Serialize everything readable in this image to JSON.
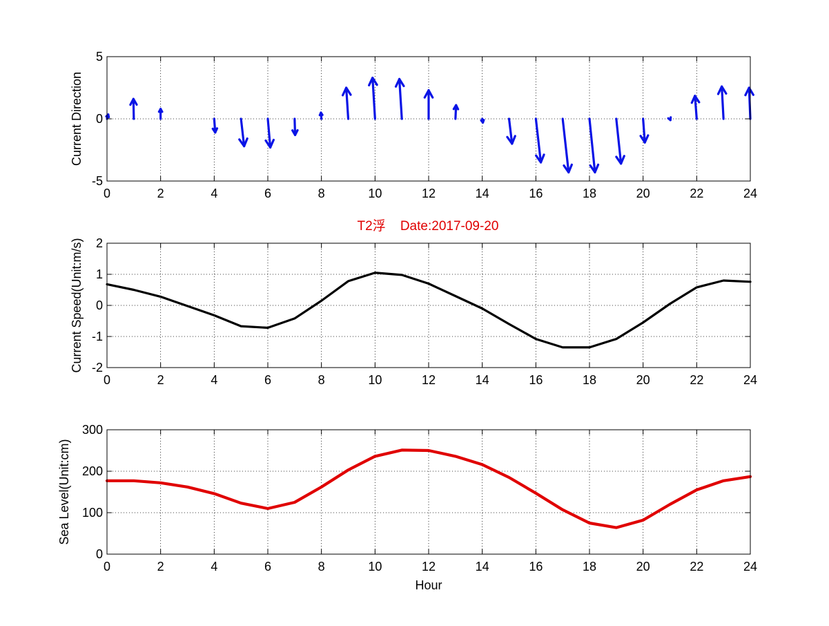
{
  "title": "T2浮    Date:2017-09-20",
  "colors": {
    "title": "#e00000",
    "quiver": "#0a14e6",
    "speed": "#000000",
    "level": "#e00000",
    "axis": "#000000"
  },
  "chart_data": [
    {
      "type": "quiver",
      "ylabel": "Current Direction",
      "xlabel": "",
      "xlim": [
        0,
        24
      ],
      "ylim": [
        -5,
        5
      ],
      "xticks": [
        0,
        2,
        4,
        6,
        8,
        10,
        12,
        14,
        16,
        18,
        20,
        22,
        24
      ],
      "yticks": [
        -5,
        0,
        5
      ],
      "grid": true,
      "x": [
        0,
        1,
        2,
        3,
        4,
        5,
        6,
        7,
        8,
        9,
        10,
        11,
        12,
        13,
        14,
        15,
        16,
        17,
        18,
        19,
        20,
        21,
        22,
        23,
        24
      ],
      "u": [
        0.1,
        -0.03,
        0.0,
        0.0,
        0.08,
        0.25,
        0.2,
        0.04,
        -0.04,
        -0.16,
        -0.2,
        -0.2,
        0.0,
        0.05,
        0.05,
        0.24,
        0.4,
        0.48,
        0.44,
        0.38,
        0.14,
        0.04,
        -0.14,
        -0.14,
        -0.1
      ],
      "v": [
        0.35,
        1.6,
        0.8,
        0.0,
        -1.1,
        -2.2,
        -2.3,
        -1.3,
        0.5,
        2.5,
        3.3,
        3.2,
        2.3,
        1.1,
        -0.3,
        -2.0,
        -3.5,
        -4.3,
        -4.3,
        -3.6,
        -1.9,
        -0.1,
        1.85,
        2.6,
        2.5
      ]
    },
    {
      "type": "line",
      "ylabel": "Current Speed(Unit:m/s)",
      "xlabel": "",
      "xlim": [
        0,
        24
      ],
      "ylim": [
        -2,
        2
      ],
      "xticks": [
        0,
        2,
        4,
        6,
        8,
        10,
        12,
        14,
        16,
        18,
        20,
        22,
        24
      ],
      "yticks": [
        -2,
        -1,
        0,
        1,
        2
      ],
      "grid": true,
      "x": [
        0,
        1,
        2,
        3,
        4,
        5,
        6,
        7,
        8,
        9,
        10,
        11,
        12,
        13,
        14,
        15,
        16,
        17,
        18,
        19,
        20,
        21,
        22,
        23,
        24
      ],
      "series": [
        {
          "values": [
            0.68,
            0.5,
            0.28,
            -0.02,
            -0.32,
            -0.67,
            -0.72,
            -0.42,
            0.15,
            0.78,
            1.05,
            0.98,
            0.7,
            0.3,
            -0.1,
            -0.6,
            -1.08,
            -1.35,
            -1.35,
            -1.08,
            -0.55,
            0.05,
            0.58,
            0.8,
            0.76
          ]
        }
      ]
    },
    {
      "type": "line",
      "ylabel": "Sea Level(Unit:cm)",
      "xlabel": "Hour",
      "xlim": [
        0,
        24
      ],
      "ylim": [
        0,
        300
      ],
      "xticks": [
        0,
        2,
        4,
        6,
        8,
        10,
        12,
        14,
        16,
        18,
        20,
        22,
        24
      ],
      "yticks": [
        0,
        100,
        200,
        300
      ],
      "grid": true,
      "x": [
        0,
        1,
        2,
        3,
        4,
        5,
        6,
        7,
        8,
        9,
        10,
        11,
        12,
        13,
        14,
        15,
        16,
        17,
        18,
        19,
        20,
        21,
        22,
        23,
        24
      ],
      "series": [
        {
          "values": [
            177,
            177,
            172,
            162,
            146,
            123,
            110,
            125,
            162,
            203,
            236,
            251,
            250,
            236,
            216,
            185,
            147,
            107,
            75,
            64,
            82,
            120,
            155,
            177,
            187
          ]
        }
      ]
    }
  ]
}
